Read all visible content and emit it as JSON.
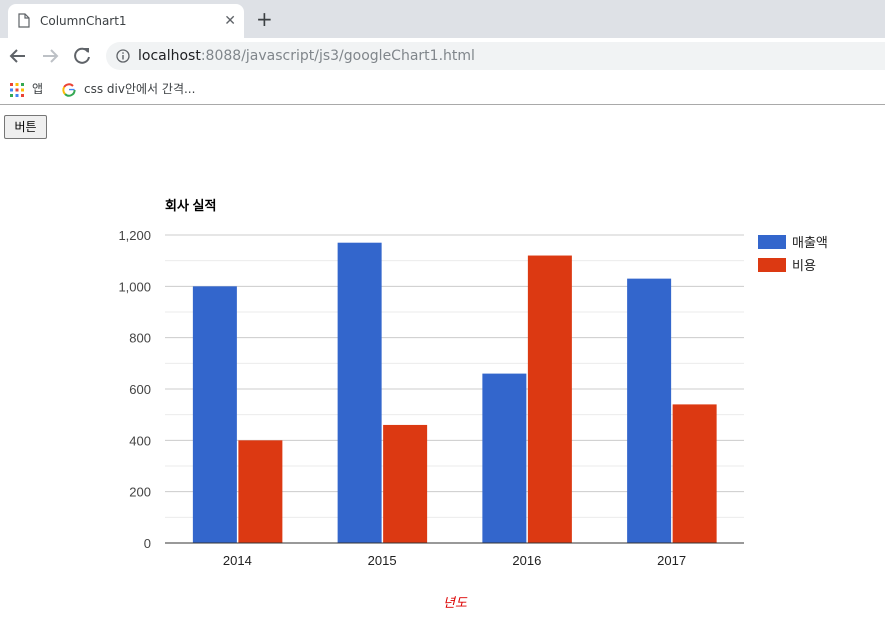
{
  "browser": {
    "tab_title": "ColumnChart1",
    "url_host": "localhost",
    "url_rest": ":8088/javascript/js3/googleChart1.html",
    "bookmarks": [
      {
        "label": "앱",
        "icon": "apps-grid-icon"
      },
      {
        "label": "css div안에서 간격...",
        "icon": "google-g-icon"
      }
    ]
  },
  "page": {
    "button_label": "버튼"
  },
  "chart_data": {
    "type": "bar",
    "title": "회사 실적",
    "xlabel": "년도",
    "ylabel": "",
    "categories": [
      "2014",
      "2015",
      "2016",
      "2017"
    ],
    "series": [
      {
        "name": "매출액",
        "values": [
          1000,
          1170,
          660,
          1030
        ],
        "color": "#3366cc"
      },
      {
        "name": "비용",
        "values": [
          400,
          460,
          1120,
          540
        ],
        "color": "#dc3912"
      }
    ],
    "ylim": [
      0,
      1200
    ],
    "yticks": [
      "0",
      "200",
      "400",
      "600",
      "800",
      "1,000",
      "1,200"
    ],
    "grid": true,
    "legend": "right"
  }
}
